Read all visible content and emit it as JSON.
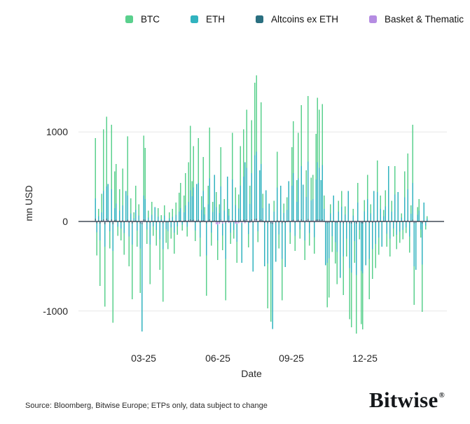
{
  "legend": {
    "items": [
      {
        "label": "BTC",
        "color": "#5ad08d"
      },
      {
        "label": "ETH",
        "color": "#31b3bf"
      },
      {
        "label": "Altcoins ex ETH",
        "color": "#2a6f80"
      },
      {
        "label": "Basket & Thematic",
        "color": "#b58ce2"
      }
    ]
  },
  "chart_data": {
    "type": "bar",
    "barmode": "overlay",
    "title": "",
    "xlabel": "Date",
    "ylabel": "mn USD",
    "ylim": [
      -1400,
      1750
    ],
    "grid": true,
    "legend_position": "top-center",
    "zero_line_color": "#424c56",
    "grid_color": "#e7e7e7",
    "yticks": [
      {
        "value": 1000,
        "label": "1000"
      },
      {
        "value": 0,
        "label": "0"
      },
      {
        "value": -1000,
        "label": "-1000"
      }
    ],
    "xticks": [
      {
        "day_index": 30,
        "label": "03-25"
      },
      {
        "day_index": 75,
        "label": "06-25"
      },
      {
        "day_index": 120,
        "label": "09-25"
      },
      {
        "day_index": 165,
        "label": "12-25"
      }
    ],
    "series": [
      {
        "name": "BTC",
        "color": "#5ad08d"
      },
      {
        "name": "ETH",
        "color": "#31b3bf"
      },
      {
        "name": "Altcoins ex ETH",
        "color": "#2a6f80"
      },
      {
        "name": "Basket & Thematic",
        "color": "#b58ce2"
      }
    ],
    "unit": "mn USD",
    "days_note": "daily flows Jan-2025 to Feb-2026, values per series [BTC, ETH, AltcoinsExETH, BasketThematic]",
    "days": [
      [
        930,
        260,
        30,
        8
      ],
      [
        -380,
        -120,
        -20,
        0
      ],
      [
        140,
        60,
        12,
        0
      ],
      [
        -720,
        -210,
        -25,
        -6
      ],
      [
        310,
        100,
        15,
        0
      ],
      [
        1030,
        340,
        25,
        8
      ],
      [
        -950,
        -280,
        -30,
        -8
      ],
      [
        1170,
        390,
        30,
        10
      ],
      [
        180,
        420,
        15,
        0
      ],
      [
        -300,
        -110,
        -12,
        0
      ],
      [
        1080,
        360,
        25,
        8
      ],
      [
        -1130,
        -330,
        -30,
        -8
      ],
      [
        560,
        150,
        15,
        0
      ],
      [
        640,
        200,
        18,
        0
      ],
      [
        -160,
        -60,
        -8,
        0
      ],
      [
        360,
        120,
        12,
        0
      ],
      [
        -210,
        -80,
        -10,
        0
      ],
      [
        590,
        180,
        15,
        5
      ],
      [
        -370,
        -130,
        -12,
        0
      ],
      [
        160,
        340,
        8,
        0
      ],
      [
        950,
        290,
        20,
        6
      ],
      [
        -500,
        -170,
        -15,
        -5
      ],
      [
        260,
        90,
        10,
        0
      ],
      [
        -870,
        -260,
        -22,
        -6
      ],
      [
        100,
        35,
        6,
        0
      ],
      [
        400,
        130,
        12,
        0
      ],
      [
        -280,
        -100,
        -10,
        0
      ],
      [
        190,
        65,
        8,
        0
      ],
      [
        -800,
        -300,
        -25,
        -8
      ],
      [
        -900,
        -1230,
        -30,
        -10
      ],
      [
        960,
        290,
        22,
        6
      ],
      [
        820,
        250,
        18,
        5
      ],
      [
        -250,
        -90,
        -10,
        0
      ],
      [
        120,
        45,
        6,
        0
      ],
      [
        -700,
        -260,
        -16,
        -5
      ],
      [
        220,
        75,
        8,
        0
      ],
      [
        -160,
        -55,
        -6,
        0
      ],
      [
        90,
        160,
        5,
        0
      ],
      [
        -270,
        -95,
        -10,
        0
      ],
      [
        150,
        55,
        6,
        0
      ],
      [
        -540,
        -200,
        -12,
        -4
      ],
      [
        70,
        25,
        4,
        0
      ],
      [
        -895,
        -310,
        -20,
        -6
      ],
      [
        180,
        65,
        7,
        0
      ],
      [
        -240,
        -85,
        -10,
        0
      ],
      [
        -310,
        -110,
        -12,
        0
      ],
      [
        100,
        35,
        5,
        0
      ],
      [
        -190,
        -65,
        -8,
        0
      ],
      [
        140,
        50,
        6,
        0
      ],
      [
        -360,
        -125,
        -12,
        -4
      ],
      [
        210,
        75,
        8,
        0
      ],
      [
        -150,
        -55,
        -6,
        0
      ],
      [
        320,
        110,
        10,
        0
      ],
      [
        430,
        150,
        12,
        4
      ],
      [
        -100,
        -35,
        -5,
        0
      ],
      [
        290,
        100,
        10,
        0
      ],
      [
        540,
        180,
        14,
        5
      ],
      [
        -170,
        -60,
        -7,
        0
      ],
      [
        660,
        220,
        16,
        5
      ],
      [
        1070,
        350,
        22,
        8
      ],
      [
        450,
        280,
        14,
        4
      ],
      [
        840,
        380,
        18,
        6
      ],
      [
        -220,
        -100,
        -10,
        0
      ],
      [
        360,
        420,
        12,
        0
      ],
      [
        930,
        430,
        20,
        6
      ],
      [
        -390,
        -180,
        -14,
        -4
      ],
      [
        280,
        130,
        10,
        0
      ],
      [
        720,
        340,
        16,
        5
      ],
      [
        160,
        80,
        7,
        0
      ],
      [
        -830,
        -380,
        -20,
        -6
      ],
      [
        400,
        190,
        12,
        4
      ],
      [
        1050,
        480,
        22,
        7
      ],
      [
        -270,
        -125,
        -10,
        0
      ],
      [
        220,
        105,
        8,
        0
      ],
      [
        470,
        520,
        14,
        4
      ],
      [
        330,
        160,
        11,
        -30
      ],
      [
        -430,
        -210,
        -14,
        -36
      ],
      [
        190,
        95,
        8,
        -26
      ],
      [
        830,
        390,
        18,
        10
      ],
      [
        -320,
        -155,
        -12,
        -22
      ],
      [
        250,
        120,
        9,
        6
      ],
      [
        -880,
        -420,
        -20,
        -12
      ],
      [
        430,
        500,
        14,
        10
      ],
      [
        140,
        65,
        6,
        -16
      ],
      [
        -250,
        -125,
        -9,
        -10
      ],
      [
        990,
        470,
        20,
        10
      ],
      [
        -190,
        -95,
        -8,
        -6
      ],
      [
        380,
        185,
        12,
        -24
      ],
      [
        -460,
        -225,
        -14,
        -28
      ],
      [
        300,
        145,
        10,
        -18
      ],
      [
        840,
        400,
        18,
        6
      ],
      [
        -360,
        -460,
        -14,
        -16
      ],
      [
        1030,
        500,
        20,
        7
      ],
      [
        570,
        660,
        16,
        -20
      ],
      [
        1250,
        600,
        24,
        10
      ],
      [
        -290,
        -140,
        -10,
        -5
      ],
      [
        400,
        195,
        12,
        -14
      ],
      [
        1130,
        540,
        22,
        8
      ],
      [
        -490,
        -560,
        -16,
        -6
      ],
      [
        1550,
        740,
        28,
        10
      ],
      [
        1630,
        780,
        30,
        10
      ],
      [
        -230,
        -110,
        -9,
        0
      ],
      [
        490,
        570,
        14,
        5
      ],
      [
        1330,
        640,
        24,
        9
      ],
      [
        310,
        150,
        10,
        0
      ],
      [
        -430,
        -500,
        -15,
        -6
      ],
      [
        290,
        350,
        10,
        0
      ],
      [
        -970,
        -470,
        -20,
        -8
      ],
      [
        160,
        200,
        7,
        0
      ],
      [
        -1120,
        -540,
        -24,
        -9
      ],
      [
        -700,
        -1200,
        -26,
        -10
      ],
      [
        230,
        110,
        9,
        0
      ],
      [
        -390,
        -450,
        -13,
        -5
      ],
      [
        780,
        380,
        16,
        6
      ],
      [
        -300,
        -145,
        -10,
        0
      ],
      [
        350,
        400,
        11,
        4
      ],
      [
        -880,
        -420,
        -18,
        -6
      ],
      [
        200,
        95,
        8,
        0
      ],
      [
        -440,
        -510,
        -14,
        -5
      ],
      [
        270,
        130,
        9,
        0
      ],
      [
        390,
        450,
        12,
        5
      ],
      [
        -250,
        -120,
        -9,
        0
      ],
      [
        830,
        400,
        16,
        6
      ],
      [
        1120,
        540,
        20,
        7
      ],
      [
        -330,
        -160,
        -11,
        -4
      ],
      [
        460,
        220,
        13,
        5
      ],
      [
        990,
        480,
        18,
        6
      ],
      [
        -190,
        -90,
        -7,
        0
      ],
      [
        1300,
        620,
        24,
        9
      ],
      [
        350,
        410,
        11,
        0
      ],
      [
        -430,
        -210,
        -13,
        -5
      ],
      [
        570,
        275,
        14,
        5
      ],
      [
        1400,
        670,
        26,
        9
      ],
      [
        -270,
        -130,
        -9,
        0
      ],
      [
        490,
        235,
        13,
        4
      ],
      [
        520,
        250,
        13,
        5
      ],
      [
        -360,
        -175,
        -12,
        -4
      ],
      [
        980,
        470,
        18,
        6
      ],
      [
        1380,
        660,
        24,
        9
      ],
      [
        1250,
        600,
        22,
        8
      ],
      [
        400,
        460,
        12,
        4
      ],
      [
        1310,
        630,
        22,
        8
      ],
      [
        290,
        140,
        9,
        0
      ],
      [
        -420,
        -490,
        -13,
        -4
      ],
      [
        -960,
        -460,
        -18,
        -7
      ],
      [
        -850,
        -410,
        -16,
        -6
      ],
      [
        190,
        90,
        7,
        0
      ],
      [
        -340,
        -165,
        -10,
        0
      ],
      [
        250,
        290,
        9,
        0
      ],
      [
        -470,
        -230,
        -13,
        -4
      ],
      [
        -700,
        -340,
        -16,
        -6
      ],
      [
        230,
        110,
        8,
        0
      ],
      [
        -550,
        -630,
        -16,
        -5
      ],
      [
        340,
        165,
        10,
        4
      ],
      [
        -820,
        -390,
        -18,
        -6
      ],
      [
        170,
        80,
        6,
        0
      ],
      [
        -390,
        -190,
        -12,
        -4
      ],
      [
        300,
        340,
        9,
        4
      ],
      [
        -1090,
        -520,
        -20,
        -8
      ],
      [
        -1180,
        -570,
        -22,
        -8
      ],
      [
        140,
        65,
        5,
        0
      ],
      [
        -460,
        -220,
        -13,
        -4
      ],
      [
        -1250,
        -600,
        -24,
        -9
      ],
      [
        430,
        210,
        12,
        4
      ],
      [
        -200,
        -95,
        -7,
        0
      ],
      [
        -1145,
        -550,
        -20,
        -8
      ],
      [
        -1205,
        -580,
        -22,
        -8
      ],
      [
        240,
        115,
        8,
        0
      ],
      [
        -430,
        -490,
        -13,
        -4
      ],
      [
        520,
        250,
        12,
        4
      ],
      [
        -870,
        -420,
        -16,
        -6
      ],
      [
        190,
        90,
        6,
        0
      ],
      [
        -640,
        -310,
        -14,
        -5
      ],
      [
        300,
        340,
        9,
        4
      ],
      [
        -520,
        -250,
        -12,
        -4
      ],
      [
        680,
        330,
        14,
        5
      ],
      [
        -370,
        -180,
        -11,
        -4
      ],
      [
        290,
        140,
        8,
        0
      ],
      [
        -240,
        -280,
        -8,
        0
      ],
      [
        130,
        60,
        5,
        0
      ],
      [
        350,
        170,
        10,
        4
      ],
      [
        -280,
        -135,
        -9,
        0
      ],
      [
        540,
        620,
        12,
        4
      ],
      [
        -390,
        -190,
        -12,
        -4
      ],
      [
        230,
        110,
        8,
        0
      ],
      [
        -170,
        -80,
        -6,
        0
      ],
      [
        620,
        300,
        13,
        4
      ],
      [
        -310,
        -150,
        -10,
        0
      ],
      [
        140,
        330,
        6,
        0
      ],
      [
        -240,
        -115,
        -8,
        0
      ],
      [
        90,
        45,
        4,
        0
      ],
      [
        -200,
        -95,
        -7,
        0
      ],
      [
        560,
        270,
        12,
        4
      ],
      [
        -130,
        -65,
        -5,
        0
      ],
      [
        760,
        360,
        16,
        5
      ],
      [
        -350,
        -170,
        -10,
        -4
      ],
      [
        180,
        85,
        6,
        0
      ],
      [
        1080,
        430,
        18,
        6
      ],
      [
        -930,
        -500,
        -20,
        -8
      ],
      [
        -420,
        -540,
        -14,
        -5
      ],
      [
        160,
        75,
        5,
        0
      ],
      [
        250,
        120,
        8,
        0
      ],
      [
        -180,
        -90,
        -6,
        0
      ],
      [
        -1010,
        -480,
        -22,
        -8
      ],
      [
        120,
        210,
        5,
        0
      ],
      [
        -90,
        -45,
        -4,
        0
      ],
      [
        60,
        30,
        3,
        0
      ]
    ]
  },
  "footer": {
    "source": "Source: Bloomberg, Bitwise Europe; ETPs only, data subject to change",
    "brand": "Bitwise",
    "registered": "®"
  }
}
